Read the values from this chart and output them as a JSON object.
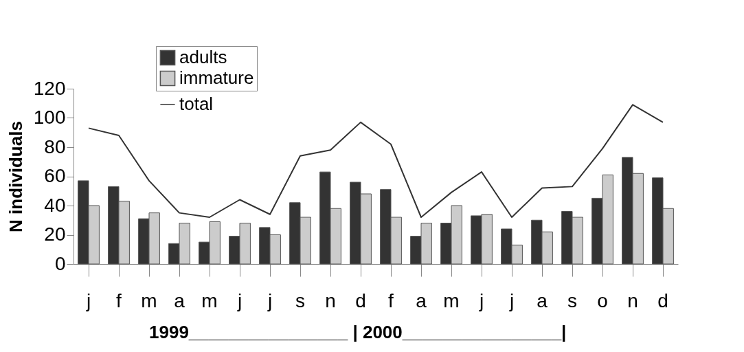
{
  "chart_data": {
    "type": "bar",
    "ylabel": "N  individuals",
    "categories": [
      "j",
      "f",
      "m",
      "a",
      "m",
      "j",
      "j",
      "s",
      "n",
      "d",
      "f",
      "a",
      "m",
      "j",
      "j",
      "a",
      "s",
      "o",
      "n",
      "d"
    ],
    "series": [
      {
        "name": "adults",
        "color": "#333333",
        "values": [
          57,
          53,
          31,
          14,
          15,
          19,
          25,
          42,
          63,
          56,
          51,
          19,
          28,
          33,
          24,
          30,
          36,
          45,
          73,
          59
        ]
      },
      {
        "name": "immature",
        "color": "#cccccc",
        "values": [
          40,
          43,
          35,
          28,
          29,
          28,
          20,
          32,
          38,
          48,
          32,
          28,
          40,
          34,
          13,
          22,
          32,
          61,
          62,
          38
        ]
      },
      {
        "name": "total",
        "type": "line",
        "color": "#333333",
        "values": [
          93,
          88,
          57,
          35,
          32,
          44,
          34,
          74,
          78,
          97,
          82,
          32,
          49,
          63,
          32,
          52,
          53,
          79,
          109,
          97
        ]
      }
    ],
    "ylim": [
      0,
      120
    ],
    "yticks": [
      0,
      20,
      40,
      60,
      80,
      100,
      120
    ],
    "grid": false,
    "legend": "top left",
    "annotations": [
      "1999________________ | 2000________________|"
    ]
  }
}
